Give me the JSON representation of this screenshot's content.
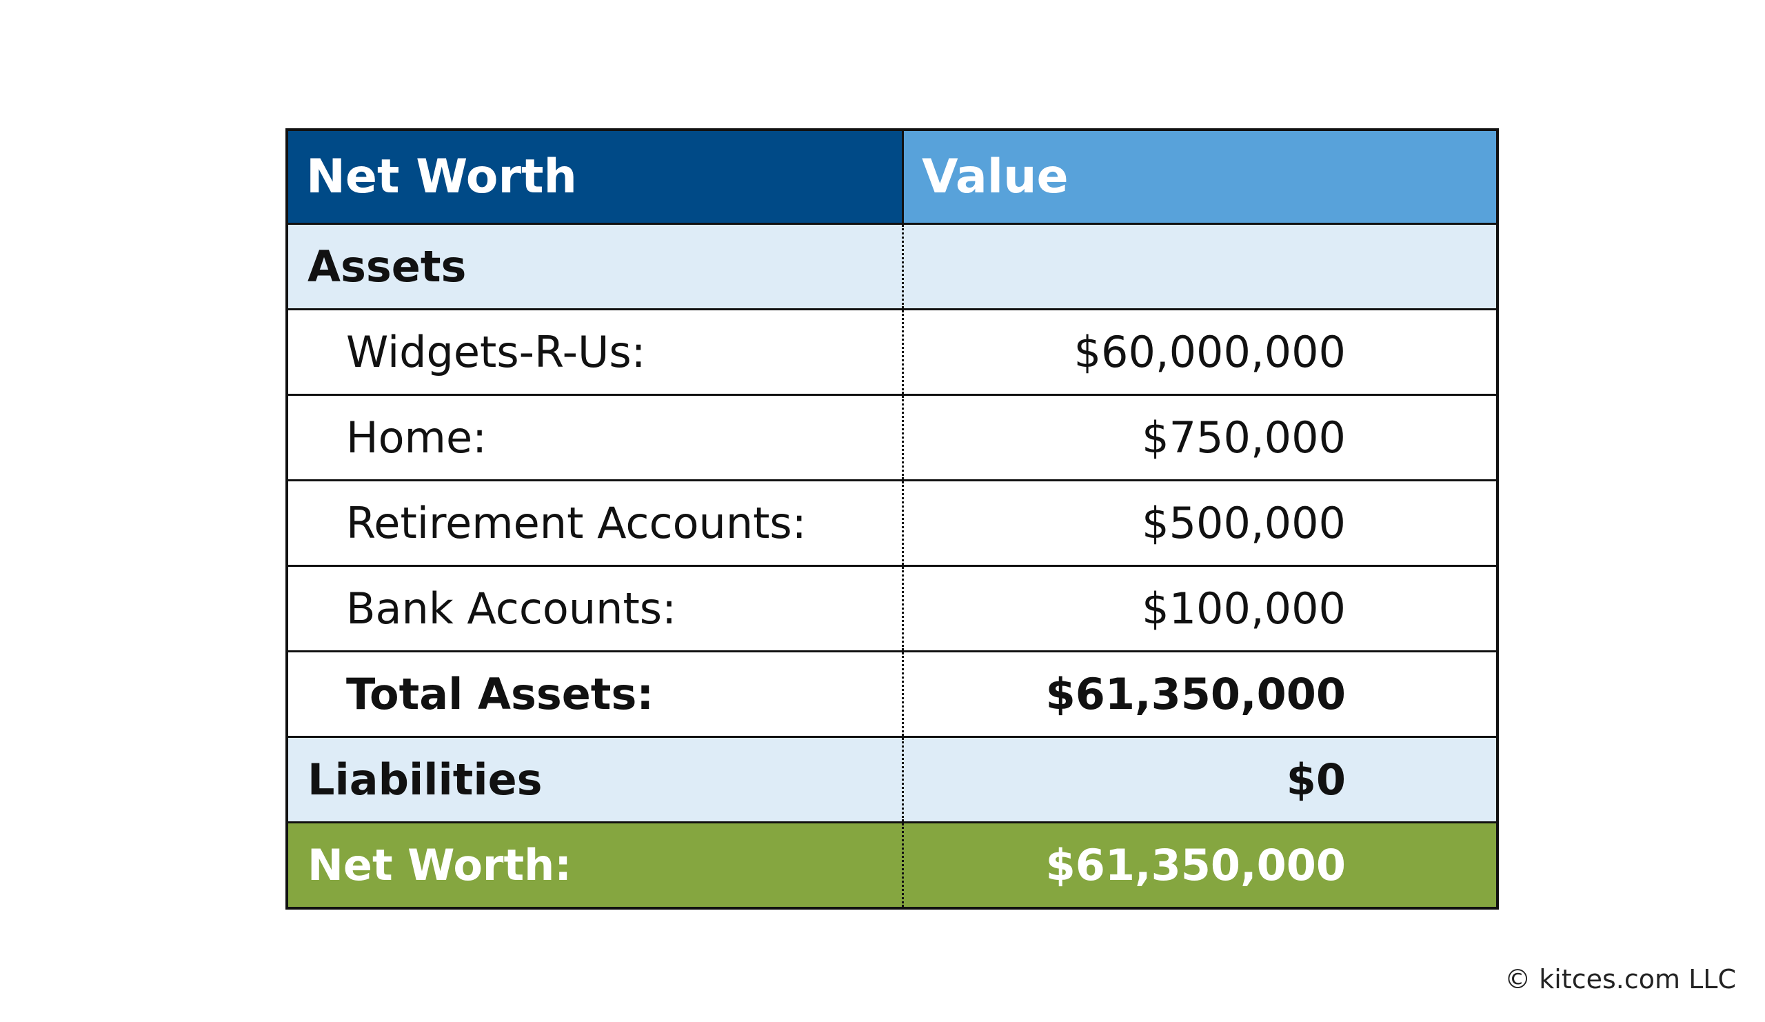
{
  "colors": {
    "header_left": "#004A87",
    "header_right": "#58A2DA",
    "section_bg": "#DEECF7",
    "row_bg": "#FFFFFF",
    "total_bg": "#85A640",
    "border": "#111111"
  },
  "chart_data": {
    "type": "table",
    "columns": [
      "Net Worth",
      "Value"
    ],
    "rows": [
      {
        "kind": "section",
        "label": "Assets",
        "value": ""
      },
      {
        "kind": "item",
        "label": "Widgets-R-Us:",
        "value": "$60,000,000"
      },
      {
        "kind": "item",
        "label": "Home:",
        "value": "$750,000"
      },
      {
        "kind": "item",
        "label": "Retirement Accounts:",
        "value": "$500,000"
      },
      {
        "kind": "item",
        "label": "Bank Accounts:",
        "value": "$100,000"
      },
      {
        "kind": "subtotal",
        "label": "Total Assets:",
        "value": "$61,350,000"
      },
      {
        "kind": "section",
        "label": "Liabilities",
        "value": "$0"
      },
      {
        "kind": "total",
        "label": "Net Worth:",
        "value": "$61,350,000"
      }
    ]
  },
  "footer": {
    "copyright": "© kitces.com LLC"
  }
}
